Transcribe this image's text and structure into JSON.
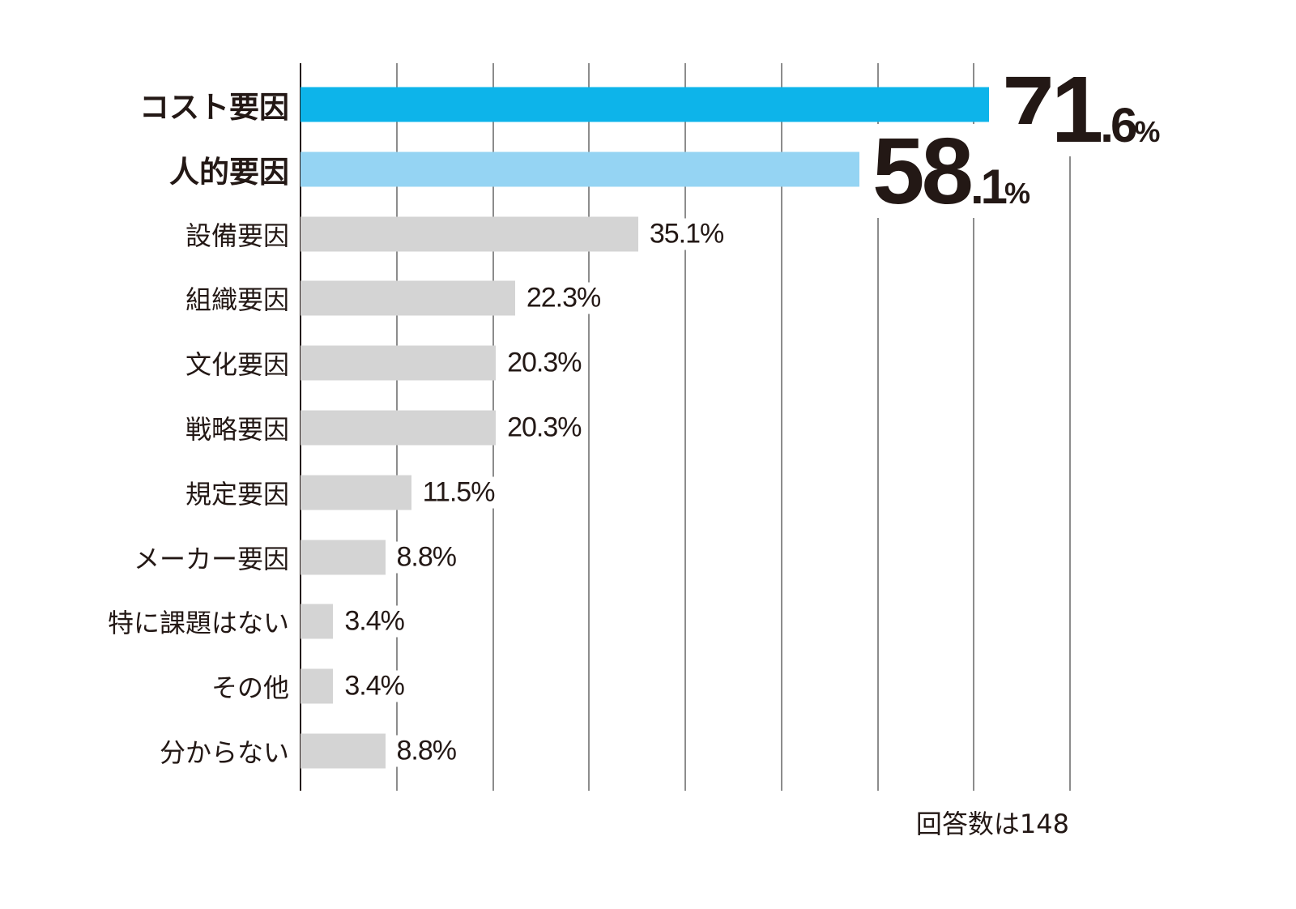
{
  "chart_data": {
    "type": "bar",
    "orientation": "horizontal",
    "categories": [
      "コスト要因",
      "人的要因",
      "設備要因",
      "組織要因",
      "文化要因",
      "戦略要因",
      "規定要因",
      "メーカー要因",
      "特に課題はない",
      "その他",
      "分からない"
    ],
    "values": [
      71.6,
      58.1,
      35.1,
      22.3,
      20.3,
      20.3,
      11.5,
      8.8,
      3.4,
      3.4,
      8.8
    ],
    "unit": "%",
    "xlim": [
      0,
      80
    ],
    "grid": true,
    "highlight": [
      0,
      1
    ],
    "colors": {
      "first": "#0db4ea",
      "second": "#95d4f3",
      "other": "#d4d4d4"
    },
    "note": "回答数は148"
  }
}
